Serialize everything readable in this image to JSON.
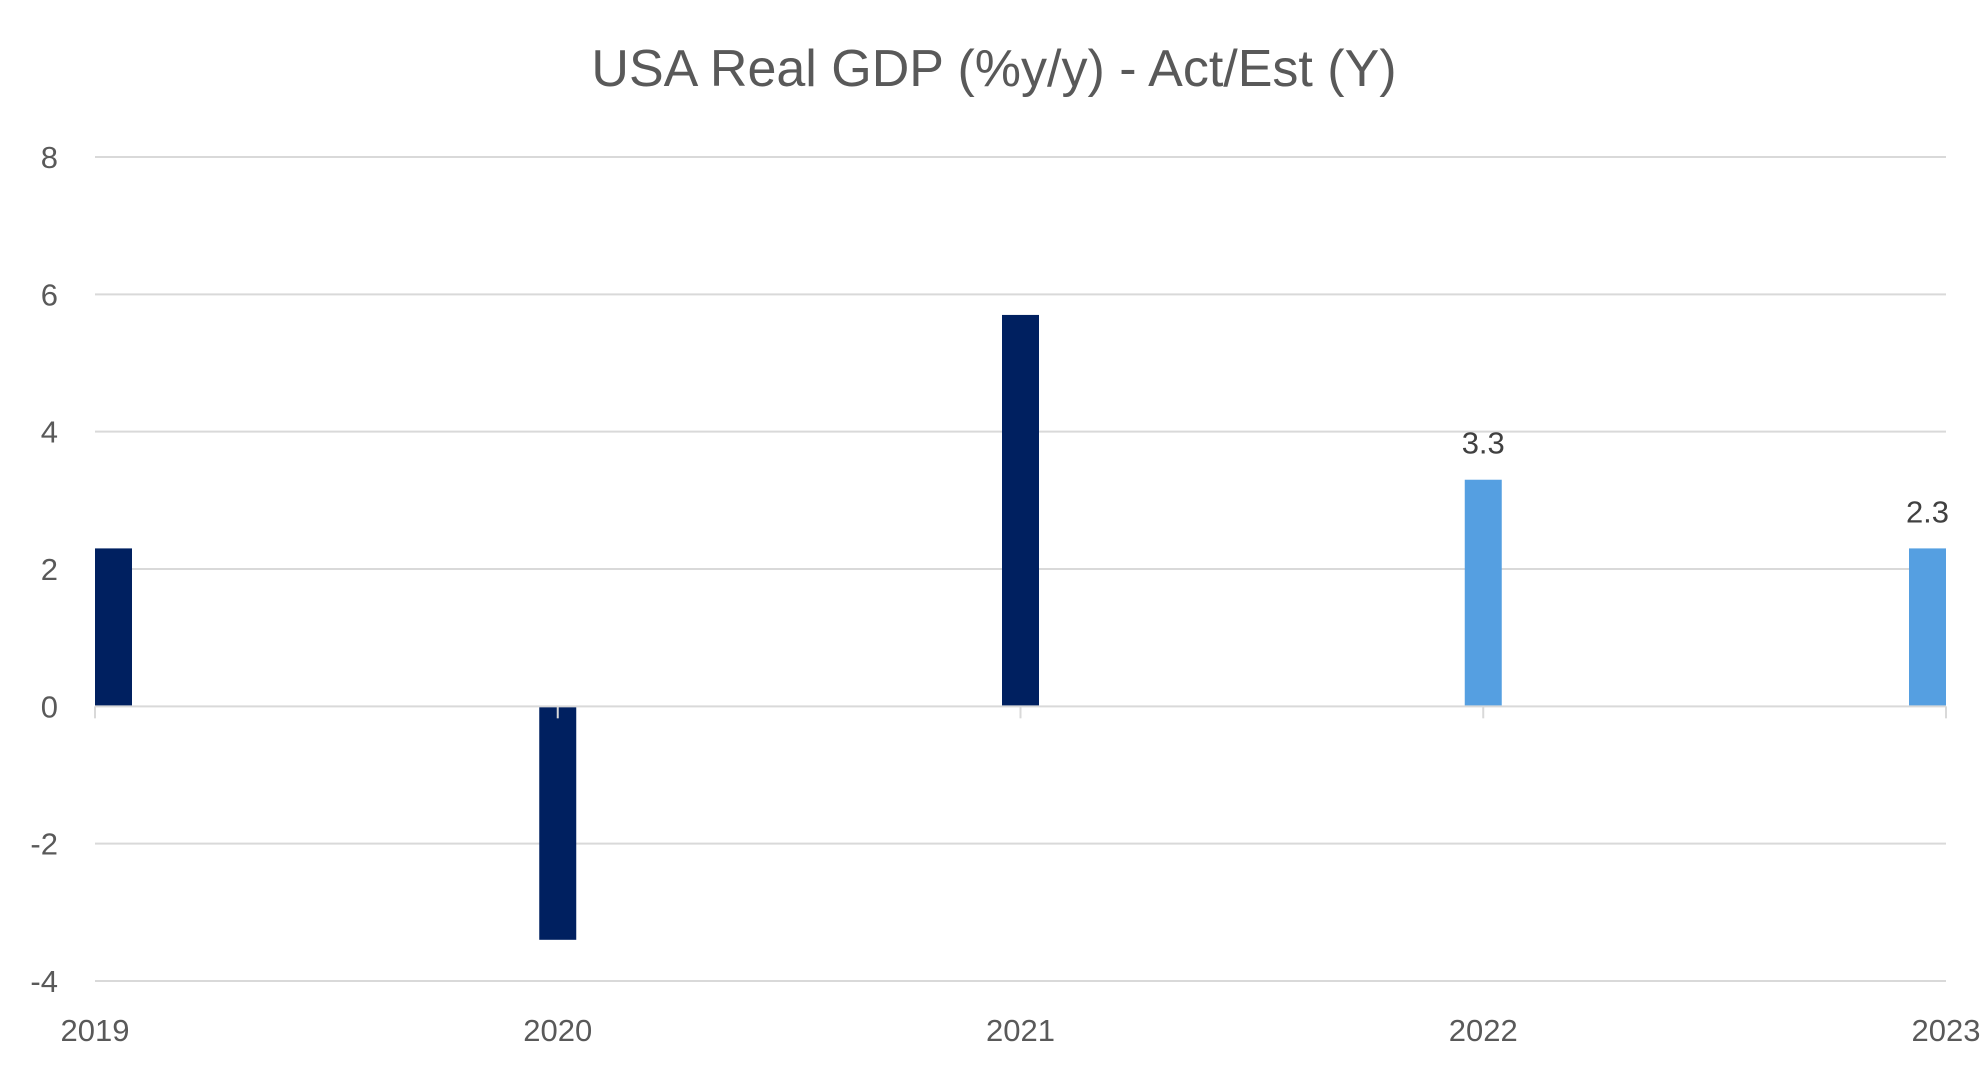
{
  "chart_data": {
    "type": "bar",
    "title": "USA Real GDP (%y/y) - Act/Est (Y)",
    "xlabel": "",
    "ylabel": "",
    "categories": [
      "2019",
      "2020",
      "2021",
      "2022",
      "2023"
    ],
    "values": [
      2.3,
      -3.4,
      5.7,
      3.3,
      2.3
    ],
    "bar_status": [
      "actual",
      "actual",
      "actual",
      "estimate",
      "estimate"
    ],
    "data_labels": [
      "",
      "",
      "",
      "3.3",
      "2.3"
    ],
    "ylim": [
      -4,
      8
    ],
    "yticks": [
      "-4",
      "-2",
      "0",
      "2",
      "4",
      "6",
      "8"
    ],
    "grid": true,
    "legend": "none",
    "colors": {
      "actual": "#002060",
      "estimate": "#559fe1"
    }
  }
}
